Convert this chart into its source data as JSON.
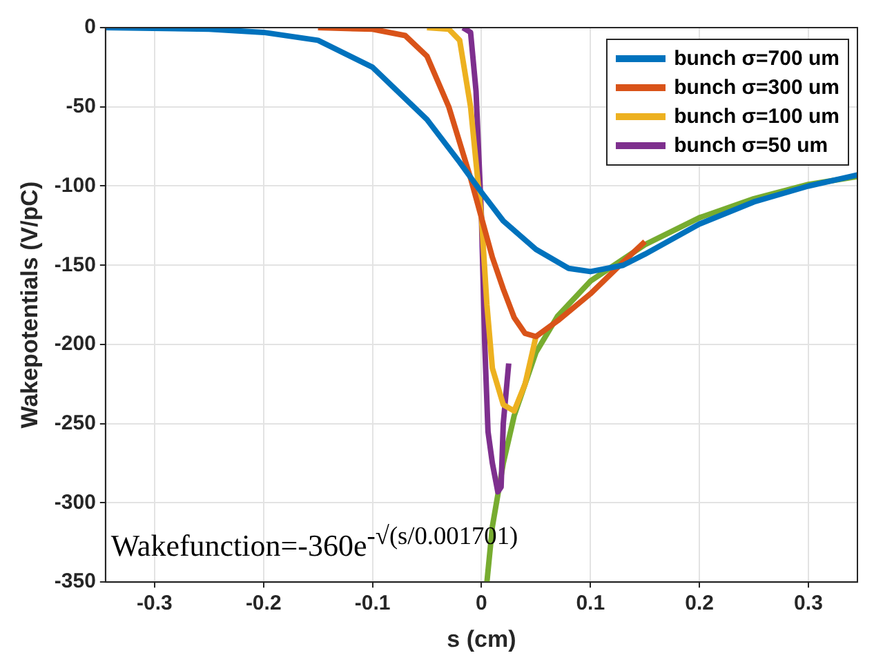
{
  "chart_data": {
    "type": "line",
    "xlabel": "s (cm)",
    "ylabel": "Wakepotentials (V/pC)",
    "xlim": [
      -0.345,
      0.345
    ],
    "xticks": [
      -0.3,
      -0.2,
      -0.1,
      0,
      0.1,
      0.2,
      0.3
    ],
    "ylim": [
      -350,
      0
    ],
    "yticks": [
      -350,
      -300,
      -250,
      -200,
      -150,
      -100,
      -50,
      0
    ],
    "grid": true,
    "legend": "top right",
    "marker": "none",
    "line_style": "solid",
    "annotations": [
      "Wakefunction=-360e$^{-√(s/0.001701)}$"
    ],
    "series": [
      {
        "name": "bunch σ=700 um",
        "color": "#0072bd",
        "x": [
          -0.345,
          -0.25,
          -0.2,
          -0.15,
          -0.1,
          -0.05,
          -0.02,
          0,
          0.02,
          0.05,
          0.08,
          0.1,
          0.13,
          0.15,
          0.2,
          0.25,
          0.3,
          0.345
        ],
        "values": [
          0,
          -1,
          -3,
          -8,
          -25,
          -58,
          -85,
          -104,
          -122,
          -140,
          -152,
          -154,
          -150,
          -143,
          -124,
          -110,
          -100,
          -93
        ]
      },
      {
        "name": "bunch σ=300 um",
        "color": "#d95319",
        "x": [
          -0.15,
          -0.1,
          -0.07,
          -0.05,
          -0.03,
          -0.01,
          0,
          0.01,
          0.02,
          0.03,
          0.04,
          0.05,
          0.07,
          0.1,
          0.13,
          0.15
        ],
        "values": [
          0,
          -1,
          -5,
          -18,
          -50,
          -95,
          -120,
          -145,
          -165,
          -183,
          -193,
          -195,
          -185,
          -168,
          -148,
          -135
        ]
      },
      {
        "name": "bunch σ=100 um",
        "color": "#edb120",
        "x": [
          -0.05,
          -0.03,
          -0.02,
          -0.01,
          0,
          0.005,
          0.01,
          0.02,
          0.03,
          0.04,
          0.05
        ],
        "values": [
          0,
          -1,
          -8,
          -50,
          -120,
          -175,
          -215,
          -238,
          -242,
          -225,
          -195
        ]
      },
      {
        "name": "bunch σ=50 um",
        "color": "#7e2f8e",
        "x": [
          -0.017,
          -0.01,
          -0.005,
          0,
          0.003,
          0.006,
          0.01,
          0.015,
          0.018,
          0.02,
          0.025
        ],
        "values": [
          0,
          -3,
          -40,
          -120,
          -200,
          -255,
          -275,
          -293,
          -290,
          -250,
          -212
        ]
      },
      {
        "color": "#77ac30",
        "x": [
          0.005,
          0.01,
          0.02,
          0.03,
          0.05,
          0.07,
          0.1,
          0.15,
          0.2,
          0.25,
          0.3,
          0.345
        ],
        "values": [
          -350,
          -315,
          -275,
          -245,
          -205,
          -182,
          -160,
          -137,
          -120,
          -108,
          -99,
          -94
        ]
      }
    ]
  }
}
